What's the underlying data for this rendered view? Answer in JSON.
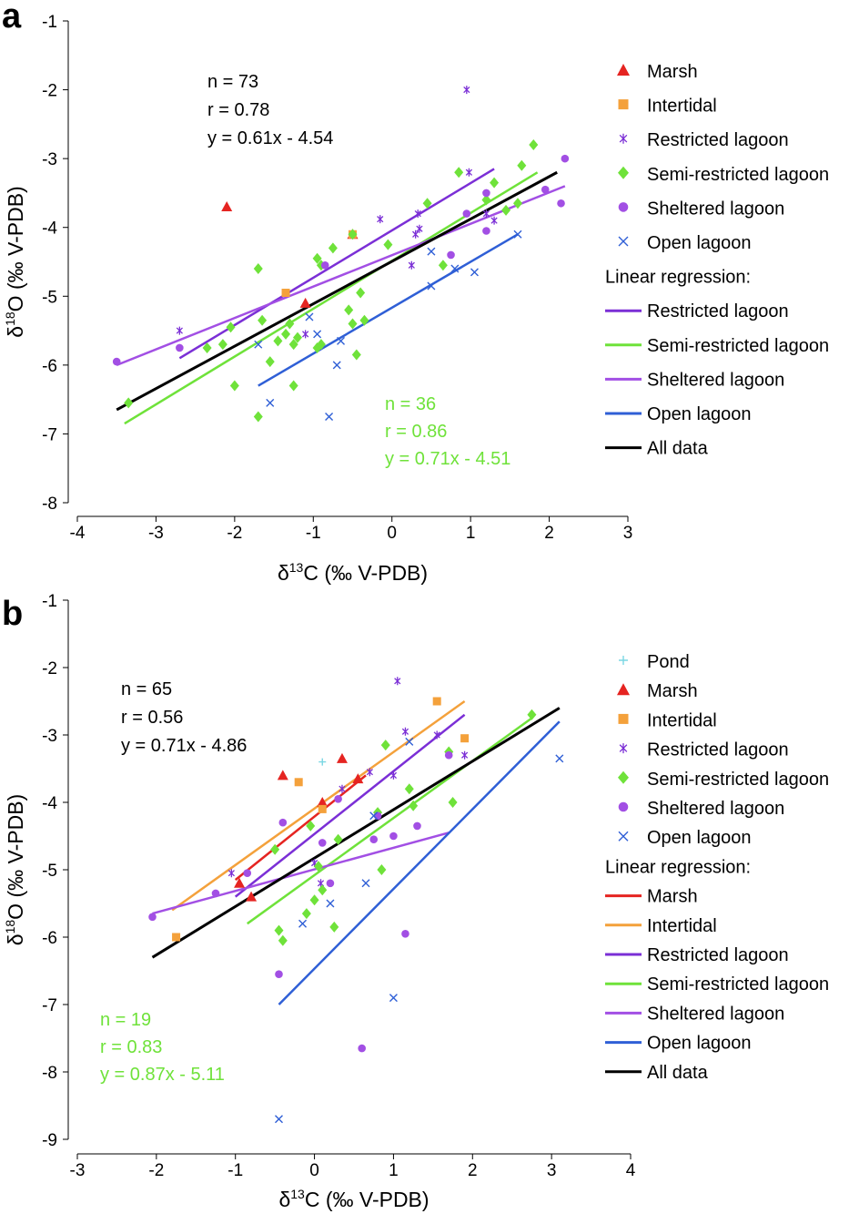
{
  "colors": {
    "marsh": "#e52421",
    "intertidal": "#f4a13b",
    "restricted": "#7b2fd6",
    "semirestricted": "#6fe23a",
    "sheltered": "#a24fe4",
    "open": "#2f5fd6",
    "pond": "#7ad7e3",
    "all": "#000000"
  },
  "chart_data": [
    {
      "panel_label": "a",
      "type": "scatter",
      "xlabel": "δ13C (‰ V-PDB)",
      "ylabel": "δ18O (‰ V-PDB)",
      "xlim": [
        -4,
        3
      ],
      "ylim": [
        -8,
        -1
      ],
      "xticks": [
        "-4",
        "-3",
        "-2",
        "-1",
        "0",
        "1",
        "2",
        "3"
      ],
      "yticks": [
        "-8",
        "-7",
        "-6",
        "-5",
        "-4",
        "-3",
        "-2",
        "-1"
      ],
      "annotation_all": [
        "n = 73",
        "r = 0.78",
        "y = 0.61x - 4.54"
      ],
      "annotation_group": [
        "n = 36",
        "r = 0.86",
        "y = 0.71x - 4.51"
      ],
      "legend_points": [
        {
          "key": "marsh",
          "label": "Marsh",
          "marker": "triangle"
        },
        {
          "key": "intertidal",
          "label": "Intertidal",
          "marker": "square"
        },
        {
          "key": "restricted",
          "label": "Restricted lagoon",
          "marker": "asterisk"
        },
        {
          "key": "semirestricted",
          "label": "Semi-restricted lagoon",
          "marker": "diamond"
        },
        {
          "key": "sheltered",
          "label": "Sheltered lagoon",
          "marker": "circle"
        },
        {
          "key": "open",
          "label": "Open lagoon",
          "marker": "cross"
        }
      ],
      "legend_regression_title": "Linear regression:",
      "legend_lines": [
        {
          "key": "restricted",
          "label": "Restricted lagoon"
        },
        {
          "key": "semirestricted",
          "label": "Semi-restricted lagoon"
        },
        {
          "key": "sheltered",
          "label": "Sheltered lagoon"
        },
        {
          "key": "open",
          "label": "Open lagoon"
        },
        {
          "key": "all",
          "label": "All data"
        }
      ],
      "regression_lines": [
        {
          "key": "restricted",
          "x": [
            -2.7,
            1.3
          ],
          "y": [
            -5.9,
            -3.15
          ]
        },
        {
          "key": "semirestricted",
          "x": [
            -3.4,
            1.85
          ],
          "y": [
            -6.85,
            -3.2
          ]
        },
        {
          "key": "sheltered",
          "x": [
            -3.5,
            2.2
          ],
          "y": [
            -6.0,
            -3.4
          ]
        },
        {
          "key": "open",
          "x": [
            -1.7,
            1.6
          ],
          "y": [
            -6.3,
            -4.1
          ]
        },
        {
          "key": "all",
          "x": [
            -3.5,
            2.1
          ],
          "y": [
            -6.65,
            -3.2
          ]
        }
      ],
      "series": [
        {
          "key": "marsh",
          "points": [
            [
              -2.1,
              -3.7
            ],
            [
              -1.1,
              -5.1
            ],
            [
              -0.5,
              -4.1
            ]
          ]
        },
        {
          "key": "intertidal",
          "points": [
            [
              -1.35,
              -4.95
            ],
            [
              -0.5,
              -4.1
            ]
          ]
        },
        {
          "key": "restricted",
          "points": [
            [
              -2.7,
              -5.5
            ],
            [
              -1.1,
              -5.55
            ],
            [
              -0.15,
              -3.88
            ],
            [
              0.25,
              -4.55
            ],
            [
              0.3,
              -4.1
            ],
            [
              0.33,
              -3.8
            ],
            [
              0.35,
              -4.02
            ],
            [
              0.95,
              -2.0
            ],
            [
              0.98,
              -3.2
            ],
            [
              1.3,
              -3.9
            ],
            [
              1.2,
              -3.8
            ]
          ]
        },
        {
          "key": "semirestricted",
          "points": [
            [
              -3.35,
              -6.55
            ],
            [
              -2.35,
              -5.75
            ],
            [
              -2.15,
              -5.7
            ],
            [
              -2.05,
              -5.45
            ],
            [
              -2.0,
              -6.3
            ],
            [
              -1.7,
              -4.6
            ],
            [
              -1.7,
              -6.75
            ],
            [
              -1.65,
              -5.35
            ],
            [
              -1.55,
              -5.95
            ],
            [
              -1.45,
              -5.65
            ],
            [
              -1.35,
              -5.55
            ],
            [
              -1.3,
              -5.4
            ],
            [
              -1.25,
              -6.3
            ],
            [
              -1.25,
              -5.7
            ],
            [
              -1.2,
              -5.6
            ],
            [
              -0.95,
              -5.75
            ],
            [
              -0.9,
              -5.7
            ],
            [
              -0.95,
              -4.45
            ],
            [
              -0.9,
              -4.55
            ],
            [
              -0.75,
              -4.3
            ],
            [
              -0.55,
              -5.2
            ],
            [
              -0.5,
              -5.4
            ],
            [
              -0.5,
              -4.1
            ],
            [
              -0.45,
              -5.85
            ],
            [
              -0.4,
              -4.95
            ],
            [
              -0.35,
              -5.35
            ],
            [
              -0.05,
              -4.25
            ],
            [
              0.45,
              -3.65
            ],
            [
              0.65,
              -4.55
            ],
            [
              0.85,
              -3.2
            ],
            [
              1.2,
              -3.6
            ],
            [
              1.3,
              -3.35
            ],
            [
              1.65,
              -3.1
            ],
            [
              1.8,
              -2.8
            ],
            [
              1.45,
              -3.75
            ],
            [
              1.6,
              -3.65
            ]
          ]
        },
        {
          "key": "sheltered",
          "points": [
            [
              -3.5,
              -5.95
            ],
            [
              -2.7,
              -5.75
            ],
            [
              -0.85,
              -4.55
            ],
            [
              0.75,
              -4.4
            ],
            [
              0.95,
              -3.8
            ],
            [
              1.2,
              -3.5
            ],
            [
              1.2,
              -4.05
            ],
            [
              1.95,
              -3.45
            ],
            [
              2.15,
              -3.65
            ],
            [
              2.2,
              -3.0
            ]
          ]
        },
        {
          "key": "open",
          "points": [
            [
              -1.7,
              -5.7
            ],
            [
              -1.55,
              -6.55
            ],
            [
              -1.05,
              -5.3
            ],
            [
              -0.95,
              -5.55
            ],
            [
              -0.8,
              -6.75
            ],
            [
              -0.7,
              -6.0
            ],
            [
              -0.65,
              -5.65
            ],
            [
              0.5,
              -4.35
            ],
            [
              0.5,
              -4.85
            ],
            [
              0.8,
              -4.6
            ],
            [
              1.05,
              -4.65
            ],
            [
              1.6,
              -4.1
            ]
          ]
        }
      ]
    },
    {
      "panel_label": "b",
      "type": "scatter",
      "xlabel": "δ13C (‰ V-PDB)",
      "ylabel": "δ18O (‰ V-PDB)",
      "xlim": [
        -3,
        4
      ],
      "ylim": [
        -9,
        -1
      ],
      "xticks": [
        "-3",
        "-2",
        "-1",
        "0",
        "1",
        "2",
        "3",
        "4"
      ],
      "yticks": [
        "-9",
        "-8",
        "-7",
        "-6",
        "-5",
        "-4",
        "-3",
        "-2",
        "-1"
      ],
      "annotation_all": [
        "n = 65",
        "r = 0.56",
        "y = 0.71x - 4.86"
      ],
      "annotation_group": [
        "n = 19",
        "r = 0.83",
        "y = 0.87x - 5.11"
      ],
      "legend_points": [
        {
          "key": "pond",
          "label": "Pond",
          "marker": "plus"
        },
        {
          "key": "marsh",
          "label": "Marsh",
          "marker": "triangle"
        },
        {
          "key": "intertidal",
          "label": "Intertidal",
          "marker": "square"
        },
        {
          "key": "restricted",
          "label": "Restricted lagoon",
          "marker": "asterisk"
        },
        {
          "key": "semirestricted",
          "label": "Semi-restricted lagoon",
          "marker": "diamond"
        },
        {
          "key": "sheltered",
          "label": "Sheltered lagoon",
          "marker": "circle"
        },
        {
          "key": "open",
          "label": "Open lagoon",
          "marker": "cross"
        }
      ],
      "legend_regression_title": "Linear regression:",
      "legend_lines": [
        {
          "key": "marsh",
          "label": "Marsh"
        },
        {
          "key": "intertidal",
          "label": "Intertidal"
        },
        {
          "key": "restricted",
          "label": "Restricted lagoon"
        },
        {
          "key": "semirestricted",
          "label": "Semi-restricted lagoon"
        },
        {
          "key": "sheltered",
          "label": "Sheltered lagoon"
        },
        {
          "key": "open",
          "label": "Open lagoon"
        },
        {
          "key": "all",
          "label": "All data"
        }
      ],
      "regression_lines": [
        {
          "key": "intertidal",
          "x": [
            -1.8,
            1.9
          ],
          "y": [
            -5.6,
            -2.5
          ]
        },
        {
          "key": "marsh",
          "x": [
            -1.0,
            0.65
          ],
          "y": [
            -5.15,
            -3.6
          ]
        },
        {
          "key": "restricted",
          "x": [
            -1.0,
            1.9
          ],
          "y": [
            -5.4,
            -2.7
          ]
        },
        {
          "key": "semirestricted",
          "x": [
            -0.85,
            2.75
          ],
          "y": [
            -5.8,
            -2.75
          ]
        },
        {
          "key": "sheltered",
          "x": [
            -2.05,
            1.7
          ],
          "y": [
            -5.65,
            -4.45
          ]
        },
        {
          "key": "open",
          "x": [
            -0.45,
            3.1
          ],
          "y": [
            -7.0,
            -2.8
          ]
        },
        {
          "key": "all",
          "x": [
            -2.05,
            3.1
          ],
          "y": [
            -6.3,
            -2.6
          ]
        }
      ],
      "series": [
        {
          "key": "pond",
          "points": [
            [
              0.1,
              -3.4
            ]
          ]
        },
        {
          "key": "marsh",
          "points": [
            [
              -0.4,
              -3.6
            ],
            [
              0.35,
              -3.35
            ],
            [
              0.1,
              -4.0
            ],
            [
              0.55,
              -3.65
            ],
            [
              -0.95,
              -5.2
            ],
            [
              -0.8,
              -5.4
            ]
          ]
        },
        {
          "key": "intertidal",
          "points": [
            [
              -1.75,
              -6.0
            ],
            [
              -0.2,
              -3.7
            ],
            [
              0.1,
              -4.1
            ],
            [
              1.55,
              -2.5
            ],
            [
              1.9,
              -3.05
            ]
          ]
        },
        {
          "key": "restricted",
          "points": [
            [
              -1.05,
              -5.05
            ],
            [
              0.0,
              -4.9
            ],
            [
              0.08,
              -5.2
            ],
            [
              0.35,
              -3.8
            ],
            [
              0.7,
              -3.55
            ],
            [
              1.0,
              -3.6
            ],
            [
              1.05,
              -2.2
            ],
            [
              1.15,
              -2.95
            ],
            [
              1.55,
              -3.0
            ],
            [
              1.9,
              -3.3
            ]
          ]
        },
        {
          "key": "semirestricted",
          "points": [
            [
              -0.5,
              -4.7
            ],
            [
              -0.45,
              -5.9
            ],
            [
              -0.4,
              -6.05
            ],
            [
              -0.1,
              -5.65
            ],
            [
              0.0,
              -5.45
            ],
            [
              0.1,
              -5.3
            ],
            [
              0.25,
              -5.85
            ],
            [
              0.3,
              -4.55
            ],
            [
              0.8,
              -4.15
            ],
            [
              0.85,
              -5.0
            ],
            [
              0.9,
              -3.15
            ],
            [
              1.2,
              -3.8
            ],
            [
              1.25,
              -4.05
            ],
            [
              1.7,
              -3.25
            ],
            [
              1.75,
              -4.0
            ],
            [
              2.75,
              -2.7
            ],
            [
              -0.05,
              -4.35
            ],
            [
              0.05,
              -4.95
            ]
          ]
        },
        {
          "key": "sheltered",
          "points": [
            [
              -2.05,
              -5.7
            ],
            [
              -1.25,
              -5.35
            ],
            [
              -0.85,
              -5.05
            ],
            [
              -0.45,
              -6.55
            ],
            [
              -0.4,
              -4.3
            ],
            [
              0.1,
              -4.6
            ],
            [
              0.2,
              -5.2
            ],
            [
              0.75,
              -4.55
            ],
            [
              0.8,
              -4.2
            ],
            [
              1.0,
              -4.5
            ],
            [
              1.15,
              -5.95
            ],
            [
              1.3,
              -4.35
            ],
            [
              0.6,
              -7.65
            ],
            [
              1.7,
              -3.3
            ],
            [
              0.3,
              -3.95
            ]
          ]
        },
        {
          "key": "open",
          "points": [
            [
              -0.45,
              -8.7
            ],
            [
              -0.15,
              -5.8
            ],
            [
              0.2,
              -5.5
            ],
            [
              0.65,
              -5.2
            ],
            [
              1.0,
              -6.9
            ],
            [
              3.1,
              -3.35
            ],
            [
              0.75,
              -4.2
            ],
            [
              1.2,
              -3.1
            ]
          ]
        }
      ]
    }
  ]
}
